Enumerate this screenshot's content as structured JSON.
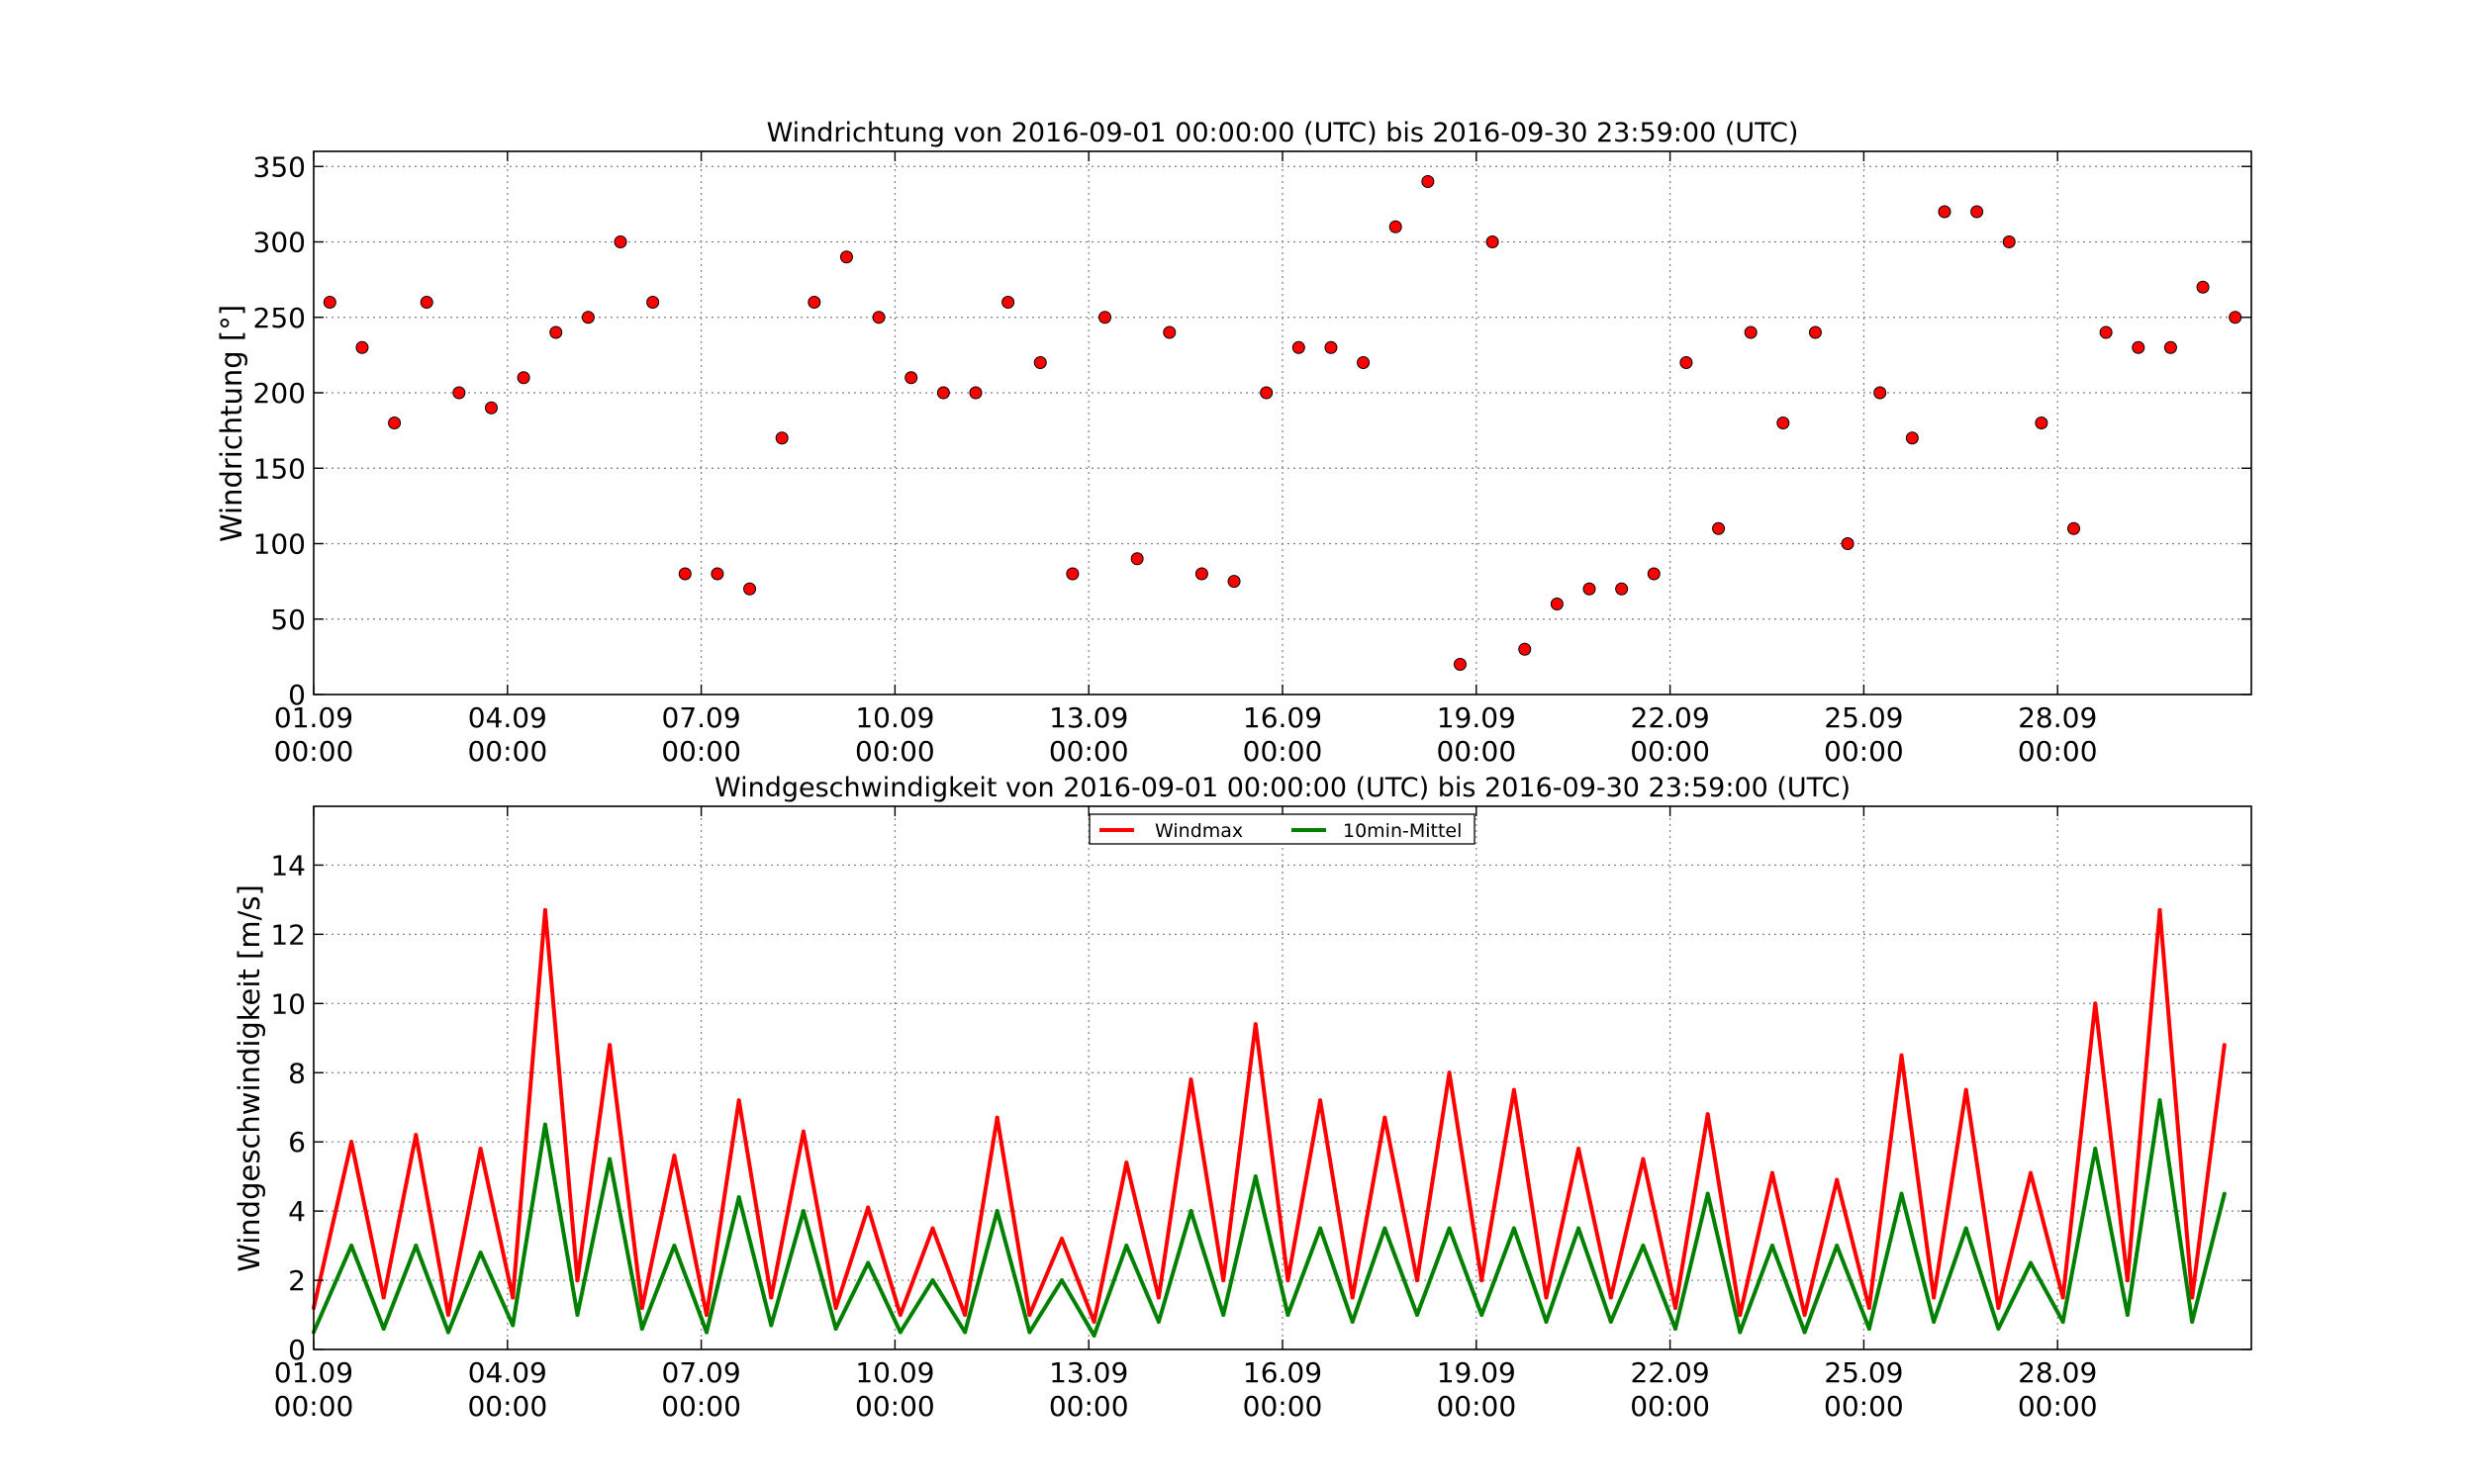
{
  "chart_data": [
    {
      "type": "scatter",
      "title": "Windrichtung von 2016-09-01 00:00:00 (UTC) bis 2016-09-30 23:59:00 (UTC)",
      "xlabel": "",
      "ylabel": "Windrichtung [°]",
      "ylim": [
        0,
        360
      ],
      "xlim": [
        "2016-09-01 00:00",
        "2016-10-01 00:00"
      ],
      "x_ticks": [
        {
          "date": "01.09",
          "time": "00:00"
        },
        {
          "date": "04.09",
          "time": "00:00"
        },
        {
          "date": "07.09",
          "time": "00:00"
        },
        {
          "date": "10.09",
          "time": "00:00"
        },
        {
          "date": "13.09",
          "time": "00:00"
        },
        {
          "date": "16.09",
          "time": "00:00"
        },
        {
          "date": "19.09",
          "time": "00:00"
        },
        {
          "date": "22.09",
          "time": "00:00"
        },
        {
          "date": "25.09",
          "time": "00:00"
        },
        {
          "date": "28.09",
          "time": "00:00"
        }
      ],
      "y_ticks": [
        "0",
        "50",
        "100",
        "150",
        "200",
        "250",
        "300",
        "350"
      ],
      "grid": true,
      "marker_color": "#ff0000",
      "points": [
        {
          "x": "2016-09-01 06:00",
          "y": 260
        },
        {
          "x": "2016-09-01 18:00",
          "y": 230
        },
        {
          "x": "2016-09-02 06:00",
          "y": 180
        },
        {
          "x": "2016-09-02 18:00",
          "y": 260
        },
        {
          "x": "2016-09-03 06:00",
          "y": 200
        },
        {
          "x": "2016-09-03 18:00",
          "y": 190
        },
        {
          "x": "2016-09-04 06:00",
          "y": 210
        },
        {
          "x": "2016-09-04 18:00",
          "y": 240
        },
        {
          "x": "2016-09-05 06:00",
          "y": 250
        },
        {
          "x": "2016-09-05 18:00",
          "y": 300
        },
        {
          "x": "2016-09-06 06:00",
          "y": 260
        },
        {
          "x": "2016-09-06 18:00",
          "y": 80
        },
        {
          "x": "2016-09-07 06:00",
          "y": 80
        },
        {
          "x": "2016-09-07 18:00",
          "y": 70
        },
        {
          "x": "2016-09-08 06:00",
          "y": 170
        },
        {
          "x": "2016-09-08 18:00",
          "y": 260
        },
        {
          "x": "2016-09-09 06:00",
          "y": 290
        },
        {
          "x": "2016-09-09 18:00",
          "y": 250
        },
        {
          "x": "2016-09-10 06:00",
          "y": 210
        },
        {
          "x": "2016-09-10 18:00",
          "y": 200
        },
        {
          "x": "2016-09-11 06:00",
          "y": 200
        },
        {
          "x": "2016-09-11 18:00",
          "y": 260
        },
        {
          "x": "2016-09-12 06:00",
          "y": 220
        },
        {
          "x": "2016-09-12 18:00",
          "y": 80
        },
        {
          "x": "2016-09-13 06:00",
          "y": 250
        },
        {
          "x": "2016-09-13 18:00",
          "y": 90
        },
        {
          "x": "2016-09-14 06:00",
          "y": 240
        },
        {
          "x": "2016-09-14 18:00",
          "y": 80
        },
        {
          "x": "2016-09-15 06:00",
          "y": 75
        },
        {
          "x": "2016-09-15 18:00",
          "y": 200
        },
        {
          "x": "2016-09-16 06:00",
          "y": 230
        },
        {
          "x": "2016-09-16 18:00",
          "y": 230
        },
        {
          "x": "2016-09-17 06:00",
          "y": 220
        },
        {
          "x": "2016-09-17 18:00",
          "y": 310
        },
        {
          "x": "2016-09-18 06:00",
          "y": 340
        },
        {
          "x": "2016-09-18 18:00",
          "y": 20
        },
        {
          "x": "2016-09-19 06:00",
          "y": 300
        },
        {
          "x": "2016-09-19 18:00",
          "y": 30
        },
        {
          "x": "2016-09-20 06:00",
          "y": 60
        },
        {
          "x": "2016-09-20 18:00",
          "y": 70
        },
        {
          "x": "2016-09-21 06:00",
          "y": 70
        },
        {
          "x": "2016-09-21 18:00",
          "y": 80
        },
        {
          "x": "2016-09-22 06:00",
          "y": 220
        },
        {
          "x": "2016-09-22 18:00",
          "y": 110
        },
        {
          "x": "2016-09-23 06:00",
          "y": 240
        },
        {
          "x": "2016-09-23 18:00",
          "y": 180
        },
        {
          "x": "2016-09-24 06:00",
          "y": 240
        },
        {
          "x": "2016-09-24 18:00",
          "y": 100
        },
        {
          "x": "2016-09-25 06:00",
          "y": 200
        },
        {
          "x": "2016-09-25 18:00",
          "y": 170
        },
        {
          "x": "2016-09-26 06:00",
          "y": 320
        },
        {
          "x": "2016-09-26 18:00",
          "y": 320
        },
        {
          "x": "2016-09-27 06:00",
          "y": 300
        },
        {
          "x": "2016-09-27 18:00",
          "y": 180
        },
        {
          "x": "2016-09-28 06:00",
          "y": 110
        },
        {
          "x": "2016-09-28 18:00",
          "y": 240
        },
        {
          "x": "2016-09-29 06:00",
          "y": 230
        },
        {
          "x": "2016-09-29 18:00",
          "y": 230
        },
        {
          "x": "2016-09-30 06:00",
          "y": 270
        },
        {
          "x": "2016-09-30 18:00",
          "y": 250
        }
      ]
    },
    {
      "type": "line",
      "title": "Windgeschwindigkeit von 2016-09-01 00:00:00 (UTC) bis 2016-09-30 23:59:00 (UTC)",
      "xlabel": "",
      "ylabel": "Windgeschwindigkeit [m/s]",
      "ylim": [
        0,
        15.7
      ],
      "xlim": [
        "2016-09-01 00:00",
        "2016-10-01 00:00"
      ],
      "x_ticks": [
        {
          "date": "01.09",
          "time": "00:00"
        },
        {
          "date": "04.09",
          "time": "00:00"
        },
        {
          "date": "07.09",
          "time": "00:00"
        },
        {
          "date": "10.09",
          "time": "00:00"
        },
        {
          "date": "13.09",
          "time": "00:00"
        },
        {
          "date": "16.09",
          "time": "00:00"
        },
        {
          "date": "19.09",
          "time": "00:00"
        },
        {
          "date": "22.09",
          "time": "00:00"
        },
        {
          "date": "25.09",
          "time": "00:00"
        },
        {
          "date": "28.09",
          "time": "00:00"
        }
      ],
      "y_ticks": [
        "0",
        "2",
        "4",
        "6",
        "8",
        "10",
        "12",
        "14"
      ],
      "grid": true,
      "legend_position": "top-center",
      "x": [
        "2016-09-01 00:00",
        "2016-09-01 14:00",
        "2016-09-02 02:00",
        "2016-09-02 14:00",
        "2016-09-03 02:00",
        "2016-09-03 14:00",
        "2016-09-04 02:00",
        "2016-09-04 14:00",
        "2016-09-05 02:00",
        "2016-09-05 14:00",
        "2016-09-06 02:00",
        "2016-09-06 14:00",
        "2016-09-07 02:00",
        "2016-09-07 14:00",
        "2016-09-08 02:00",
        "2016-09-08 14:00",
        "2016-09-09 02:00",
        "2016-09-09 14:00",
        "2016-09-10 02:00",
        "2016-09-10 14:00",
        "2016-09-11 02:00",
        "2016-09-11 14:00",
        "2016-09-12 02:00",
        "2016-09-12 14:00",
        "2016-09-13 02:00",
        "2016-09-13 14:00",
        "2016-09-14 02:00",
        "2016-09-14 14:00",
        "2016-09-15 02:00",
        "2016-09-15 14:00",
        "2016-09-16 02:00",
        "2016-09-16 14:00",
        "2016-09-17 02:00",
        "2016-09-17 14:00",
        "2016-09-18 02:00",
        "2016-09-18 14:00",
        "2016-09-19 02:00",
        "2016-09-19 14:00",
        "2016-09-20 02:00",
        "2016-09-20 14:00",
        "2016-09-21 02:00",
        "2016-09-21 14:00",
        "2016-09-22 02:00",
        "2016-09-22 14:00",
        "2016-09-23 02:00",
        "2016-09-23 14:00",
        "2016-09-24 02:00",
        "2016-09-24 14:00",
        "2016-09-25 02:00",
        "2016-09-25 14:00",
        "2016-09-26 02:00",
        "2016-09-26 14:00",
        "2016-09-27 02:00",
        "2016-09-27 14:00",
        "2016-09-28 02:00",
        "2016-09-28 14:00",
        "2016-09-29 02:00",
        "2016-09-29 14:00",
        "2016-09-30 02:00",
        "2016-09-30 14:00"
      ],
      "series": [
        {
          "name": "Windmax",
          "color": "#ff0000",
          "values": [
            1.2,
            6.0,
            1.5,
            6.2,
            1.0,
            5.8,
            1.5,
            12.7,
            2.0,
            8.8,
            1.2,
            5.6,
            1.0,
            7.2,
            1.5,
            6.3,
            1.2,
            4.1,
            1.0,
            3.5,
            1.0,
            6.7,
            1.0,
            3.2,
            0.8,
            5.4,
            1.5,
            7.8,
            2.0,
            9.4,
            2.0,
            7.2,
            1.5,
            6.7,
            2.0,
            8.0,
            2.0,
            7.5,
            1.5,
            5.8,
            1.5,
            5.5,
            1.2,
            6.8,
            1.0,
            5.1,
            1.0,
            4.9,
            1.2,
            8.5,
            1.5,
            7.5,
            1.2,
            5.1,
            1.5,
            10.0,
            2.0,
            12.7,
            1.5,
            8.8
          ]
        },
        {
          "name": "10min-Mittel",
          "color": "#008000",
          "values": [
            0.5,
            3.0,
            0.6,
            3.0,
            0.5,
            2.8,
            0.7,
            6.5,
            1.0,
            5.5,
            0.6,
            3.0,
            0.5,
            4.4,
            0.7,
            4.0,
            0.6,
            2.5,
            0.5,
            2.0,
            0.5,
            4.0,
            0.5,
            2.0,
            0.4,
            3.0,
            0.8,
            4.0,
            1.0,
            5.0,
            1.0,
            3.5,
            0.8,
            3.5,
            1.0,
            3.5,
            1.0,
            3.5,
            0.8,
            3.5,
            0.8,
            3.0,
            0.6,
            4.5,
            0.5,
            3.0,
            0.5,
            3.0,
            0.6,
            4.5,
            0.8,
            3.5,
            0.6,
            2.5,
            0.8,
            5.8,
            1.0,
            7.2,
            0.8,
            4.5
          ]
        }
      ]
    }
  ]
}
